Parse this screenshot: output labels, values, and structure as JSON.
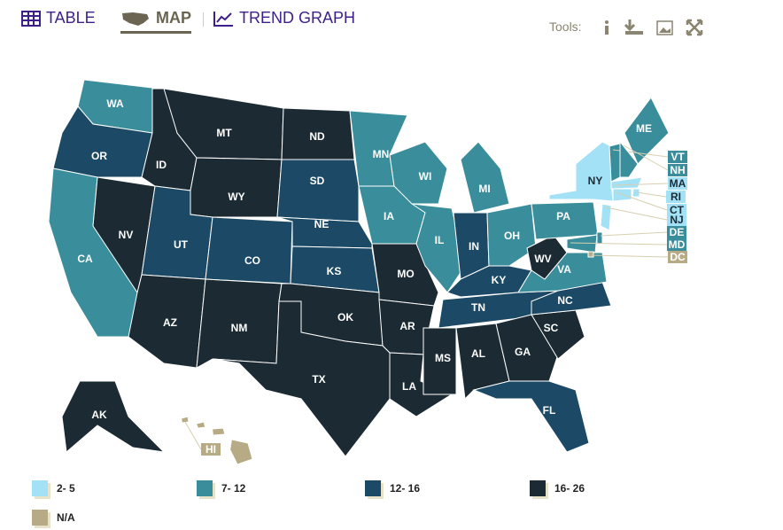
{
  "tabs": [
    "TABLE",
    "MAP",
    "TREND GRAPH"
  ],
  "active_tab": 1,
  "tools_label": "Tools:",
  "legend": [
    {
      "label": "2- 5",
      "color": "#a3e1f7"
    },
    {
      "label": "7- 12",
      "color": "#3a8e9b"
    },
    {
      "label": "12- 16",
      "color": "#1b4966"
    },
    {
      "label": "16- 26",
      "color": "#1c2b33"
    },
    {
      "label": "N/A",
      "color": "#b7ab85"
    }
  ],
  "states": [
    {
      "abbr": "WA",
      "group": 1
    },
    {
      "abbr": "OR",
      "group": 2
    },
    {
      "abbr": "CA",
      "group": 1
    },
    {
      "abbr": "NV",
      "group": 3
    },
    {
      "abbr": "ID",
      "group": 3
    },
    {
      "abbr": "MT",
      "group": 3
    },
    {
      "abbr": "WY",
      "group": 3
    },
    {
      "abbr": "UT",
      "group": 2
    },
    {
      "abbr": "CO",
      "group": 2
    },
    {
      "abbr": "AZ",
      "group": 3
    },
    {
      "abbr": "NM",
      "group": 3
    },
    {
      "abbr": "ND",
      "group": 3
    },
    {
      "abbr": "SD",
      "group": 2
    },
    {
      "abbr": "NE",
      "group": 2
    },
    {
      "abbr": "KS",
      "group": 2
    },
    {
      "abbr": "OK",
      "group": 3
    },
    {
      "abbr": "TX",
      "group": 3
    },
    {
      "abbr": "MN",
      "group": 1
    },
    {
      "abbr": "IA",
      "group": 1
    },
    {
      "abbr": "MO",
      "group": 3
    },
    {
      "abbr": "AR",
      "group": 3
    },
    {
      "abbr": "LA",
      "group": 3
    },
    {
      "abbr": "WI",
      "group": 1
    },
    {
      "abbr": "IL",
      "group": 1
    },
    {
      "abbr": "MI",
      "group": 1
    },
    {
      "abbr": "IN",
      "group": 2
    },
    {
      "abbr": "OH",
      "group": 1
    },
    {
      "abbr": "KY",
      "group": 2
    },
    {
      "abbr": "TN",
      "group": 2
    },
    {
      "abbr": "MS",
      "group": 3
    },
    {
      "abbr": "AL",
      "group": 3
    },
    {
      "abbr": "GA",
      "group": 3
    },
    {
      "abbr": "FL",
      "group": 2
    },
    {
      "abbr": "SC",
      "group": 3
    },
    {
      "abbr": "NC",
      "group": 2
    },
    {
      "abbr": "VA",
      "group": 1
    },
    {
      "abbr": "WV",
      "group": 3
    },
    {
      "abbr": "PA",
      "group": 1
    },
    {
      "abbr": "NY",
      "group": 0
    },
    {
      "abbr": "ME",
      "group": 1
    },
    {
      "abbr": "AK",
      "group": 3
    },
    {
      "abbr": "VT",
      "group": 1
    },
    {
      "abbr": "NH",
      "group": 1
    },
    {
      "abbr": "MA",
      "group": 0
    },
    {
      "abbr": "RI",
      "group": 0
    },
    {
      "abbr": "CT",
      "group": 0
    },
    {
      "abbr": "NJ",
      "group": 0
    },
    {
      "abbr": "DE",
      "group": 1
    },
    {
      "abbr": "MD",
      "group": 1
    },
    {
      "abbr": "DC",
      "group": 4
    },
    {
      "abbr": "HI",
      "group": 4
    }
  ]
}
